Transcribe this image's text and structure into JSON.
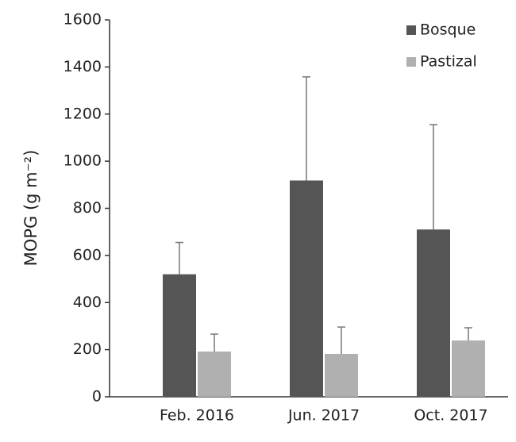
{
  "chart_data": {
    "type": "bar",
    "y_label": "MOPG (g m⁻²)",
    "categories": [
      "Feb. 2016",
      "Jun. 2017",
      "Oct. 2017"
    ],
    "series": [
      {
        "name": "Bosque",
        "color": "#555555",
        "values": [
          520,
          918,
          710
        ],
        "errors": [
          135,
          440,
          445
        ]
      },
      {
        "name": "Pastizal",
        "color": "#b0b0b0",
        "values": [
          192,
          182,
          239
        ],
        "errors": [
          74,
          114,
          54
        ]
      }
    ],
    "ylim": [
      0,
      1600
    ],
    "yticks": [
      0,
      200,
      400,
      600,
      800,
      1000,
      1200,
      1400,
      1600
    ],
    "grid": false,
    "legend": "top-right"
  }
}
